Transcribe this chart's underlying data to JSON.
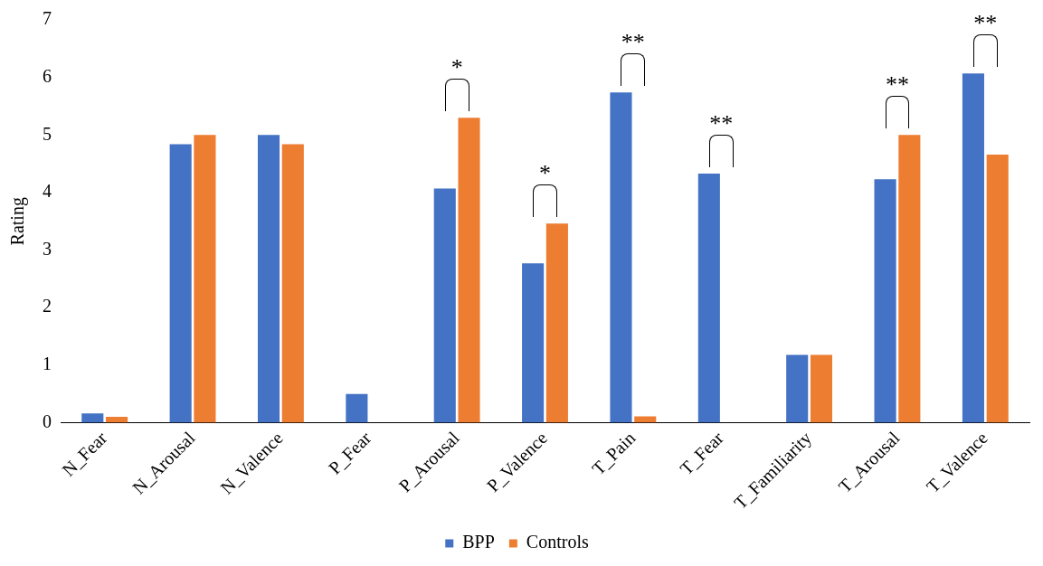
{
  "chart_data": {
    "type": "bar",
    "ylabel": "Rating",
    "categories": [
      "N_Fear",
      "N_Arousal",
      "N_Valence",
      "P_Fear",
      "P_Arousal",
      "P_Valence",
      "T_Pain",
      "T_Fear",
      "T_Familiarity",
      "T_Arousal",
      "T_Valence"
    ],
    "series": [
      {
        "name": "BPP",
        "color": "#4472c4",
        "values": [
          0.16,
          4.84,
          5.0,
          0.5,
          4.07,
          2.77,
          5.74,
          4.33,
          1.18,
          4.23,
          6.07
        ]
      },
      {
        "name": "Controls",
        "color": "#ed7d31",
        "values": [
          0.1,
          5.0,
          4.84,
          0,
          5.3,
          3.46,
          0.11,
          0,
          1.18,
          5.0,
          4.66
        ]
      }
    ],
    "ylim": [
      0,
      7
    ],
    "yticks": [
      0,
      1,
      2,
      3,
      4,
      5,
      6,
      7
    ],
    "grid": false,
    "legend": "bottom",
    "annotations": [
      {
        "text": "*",
        "x": "P_Arousal",
        "y": 5.3
      },
      {
        "text": "*",
        "x": "P_Valence",
        "y": 3.46
      },
      {
        "text": "**",
        "x": "T_Pain",
        "y": 5.74
      },
      {
        "text": "**",
        "x": "T_Fear",
        "y": 4.33
      },
      {
        "text": "**",
        "x": "T_Arousal",
        "y": 5.0
      },
      {
        "text": "**",
        "x": "T_Valence",
        "y": 6.07
      }
    ]
  }
}
